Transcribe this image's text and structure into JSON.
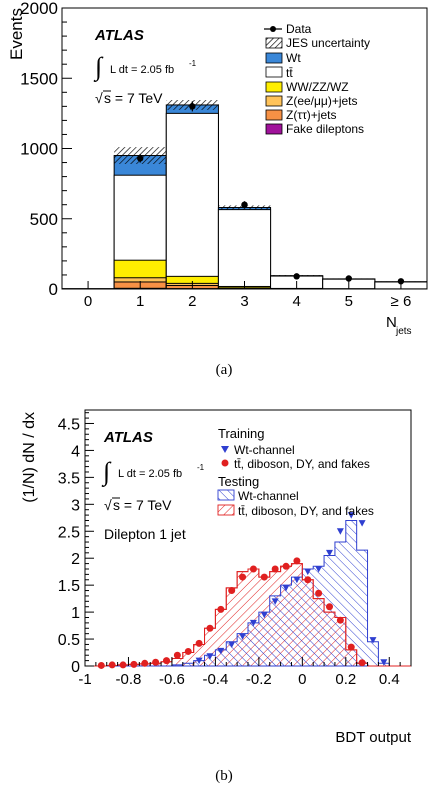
{
  "chart_data": [
    {
      "panel_label": "(a)",
      "type": "bar",
      "ylabel": "Events",
      "xlabel": "N_jets",
      "xlabel_main": "N",
      "xlabel_sub": "jets",
      "ylim": [
        0,
        2000
      ],
      "yticks": [
        0,
        500,
        1000,
        1500,
        2000
      ],
      "categories": [
        "0",
        "1",
        "2",
        "3",
        "4",
        "5",
        "≥ 6"
      ],
      "atlas_label": "ATLAS",
      "lumi": {
        "integral": "∫",
        "text": "L dt = 2.05 fb",
        "sup": "-1"
      },
      "energy": {
        "sqrt": "√",
        "text": "s = 7 TeV"
      },
      "legend": [
        {
          "key": "data",
          "label": "Data"
        },
        {
          "key": "jes",
          "label": "JES uncertainty"
        },
        {
          "key": "wt",
          "label": "Wt"
        },
        {
          "key": "tt",
          "label": "tt̄"
        },
        {
          "key": "dib",
          "label": "WW/ZZ/WZ"
        },
        {
          "key": "zee",
          "label": "Z(ee/μμ)+jets"
        },
        {
          "key": "ztt",
          "label": "Z(ττ)+jets"
        },
        {
          "key": "fake",
          "label": "Fake dileptons"
        }
      ],
      "stack_totals": {
        "fake": [
          0,
          5,
          3,
          1,
          0,
          0,
          0
        ],
        "ztt": [
          0,
          50,
          25,
          3,
          1,
          0,
          0
        ],
        "zee": [
          0,
          80,
          40,
          8,
          2,
          1,
          0
        ],
        "dib": [
          0,
          205,
          90,
          18,
          4,
          2,
          1
        ],
        "tt": [
          2,
          810,
          1250,
          565,
          92,
          70,
          50
        ],
        "wt": [
          2,
          950,
          1310,
          580,
          95,
          72,
          52
        ]
      },
      "jes_uncertainty": [
        0,
        60,
        35,
        15,
        4,
        3,
        2
      ],
      "data_points": [
        {
          "x": 1,
          "y": 930,
          "err": 30
        },
        {
          "x": 2,
          "y": 1300,
          "err": 36
        },
        {
          "x": 3,
          "y": 600,
          "err": 25
        },
        {
          "x": 4,
          "y": 90,
          "err": 10
        },
        {
          "x": 5,
          "y": 75,
          "err": 9
        },
        {
          "x": 6,
          "y": 55,
          "err": 8
        }
      ],
      "colors": {
        "wt": "#3a87d8",
        "tt": "#ffffff",
        "dib": "#ffee00",
        "zee": "#ffc35a",
        "ztt": "#f79145",
        "fake": "#a0129b"
      }
    },
    {
      "panel_label": "(b)",
      "type": "bar",
      "ylabel": "(1/N) dN / dx",
      "xlabel": "BDT output",
      "xlim": [
        -1,
        0.5
      ],
      "ylim": [
        0,
        4.75
      ],
      "xticks": [
        -1,
        -0.8,
        -0.6,
        -0.4,
        -0.2,
        0,
        0.2,
        0.4
      ],
      "xtick_labels": [
        "-1",
        "-0.8",
        "-0.6",
        "-0.4",
        "-0.2",
        "0",
        "0.2",
        "0.4"
      ],
      "yticks": [
        0,
        0.5,
        1,
        1.5,
        2,
        2.5,
        3,
        3.5,
        4,
        4.5
      ],
      "ytick_labels": [
        "0",
        "0.5",
        "1",
        "1.5",
        "2",
        "2.5",
        "3",
        "3.5",
        "4",
        "4.5"
      ],
      "bin_edges": [
        -1,
        -0.95,
        -0.9,
        -0.85,
        -0.8,
        -0.75,
        -0.7,
        -0.65,
        -0.6,
        -0.55,
        -0.5,
        -0.45,
        -0.4,
        -0.35,
        -0.3,
        -0.25,
        -0.2,
        -0.15,
        -0.1,
        -0.05,
        0,
        0.05,
        0.1,
        0.15,
        0.2,
        0.25,
        0.3,
        0.35,
        0.4,
        0.45,
        0.5
      ],
      "atlas_label": "ATLAS",
      "lumi": {
        "integral": "∫",
        "text": "L dt = 2.05 fb",
        "sup": "-1"
      },
      "energy": {
        "sqrt": "√",
        "text": "s = 7 TeV"
      },
      "channel": "Dilepton 1 jet",
      "legend_training_title": "Training",
      "legend_testing_title": "Testing",
      "legend": [
        {
          "key": "train_wt",
          "label": "Wt-channel"
        },
        {
          "key": "train_bkg",
          "label": "tt̄, diboson, DY, and fakes"
        },
        {
          "key": "test_wt",
          "label": "Wt-channel"
        },
        {
          "key": "test_bkg",
          "label": "tt̄, diboson, DY, and fakes"
        }
      ],
      "series": [
        {
          "name": "Testing Wt-channel",
          "values": [
            0,
            0,
            0,
            0,
            0,
            0,
            0,
            0,
            0.02,
            0.05,
            0.1,
            0.2,
            0.3,
            0.45,
            0.6,
            0.8,
            1.0,
            1.3,
            1.5,
            1.65,
            1.8,
            1.85,
            2.05,
            2.3,
            2.7,
            2.15,
            0.45,
            0.05,
            0,
            0
          ]
        },
        {
          "name": "Testing tt̄, diboson, DY, and fakes",
          "values": [
            0,
            0,
            0.01,
            0.02,
            0.03,
            0.04,
            0.05,
            0.08,
            0.14,
            0.25,
            0.4,
            0.7,
            1.05,
            1.45,
            1.75,
            1.8,
            1.65,
            1.75,
            1.85,
            1.9,
            1.6,
            1.25,
            1.0,
            0.9,
            0.3,
            0.05,
            0,
            0,
            0,
            0
          ]
        },
        {
          "name": "Training Wt-channel",
          "values": [
            null,
            null,
            null,
            null,
            null,
            null,
            null,
            null,
            null,
            null,
            0.1,
            0.18,
            0.28,
            0.4,
            0.55,
            0.8,
            0.95,
            1.2,
            1.45,
            1.6,
            1.75,
            1.8,
            2.1,
            2.5,
            2.8,
            2.65,
            0.48,
            0.07,
            null,
            null
          ]
        },
        {
          "name": "Training tt̄, diboson, DY, and fakes",
          "values": [
            null,
            0.01,
            0.02,
            0.02,
            0.03,
            0.05,
            0.07,
            0.1,
            0.2,
            0.27,
            0.42,
            0.7,
            1.05,
            1.4,
            1.65,
            1.8,
            1.65,
            1.8,
            1.85,
            1.95,
            1.6,
            1.35,
            1.1,
            0.85,
            0.35,
            0.06,
            null,
            null,
            null,
            null
          ]
        }
      ],
      "colors": {
        "wt": "#2f3fd0",
        "bkg": "#e02020"
      }
    }
  ]
}
